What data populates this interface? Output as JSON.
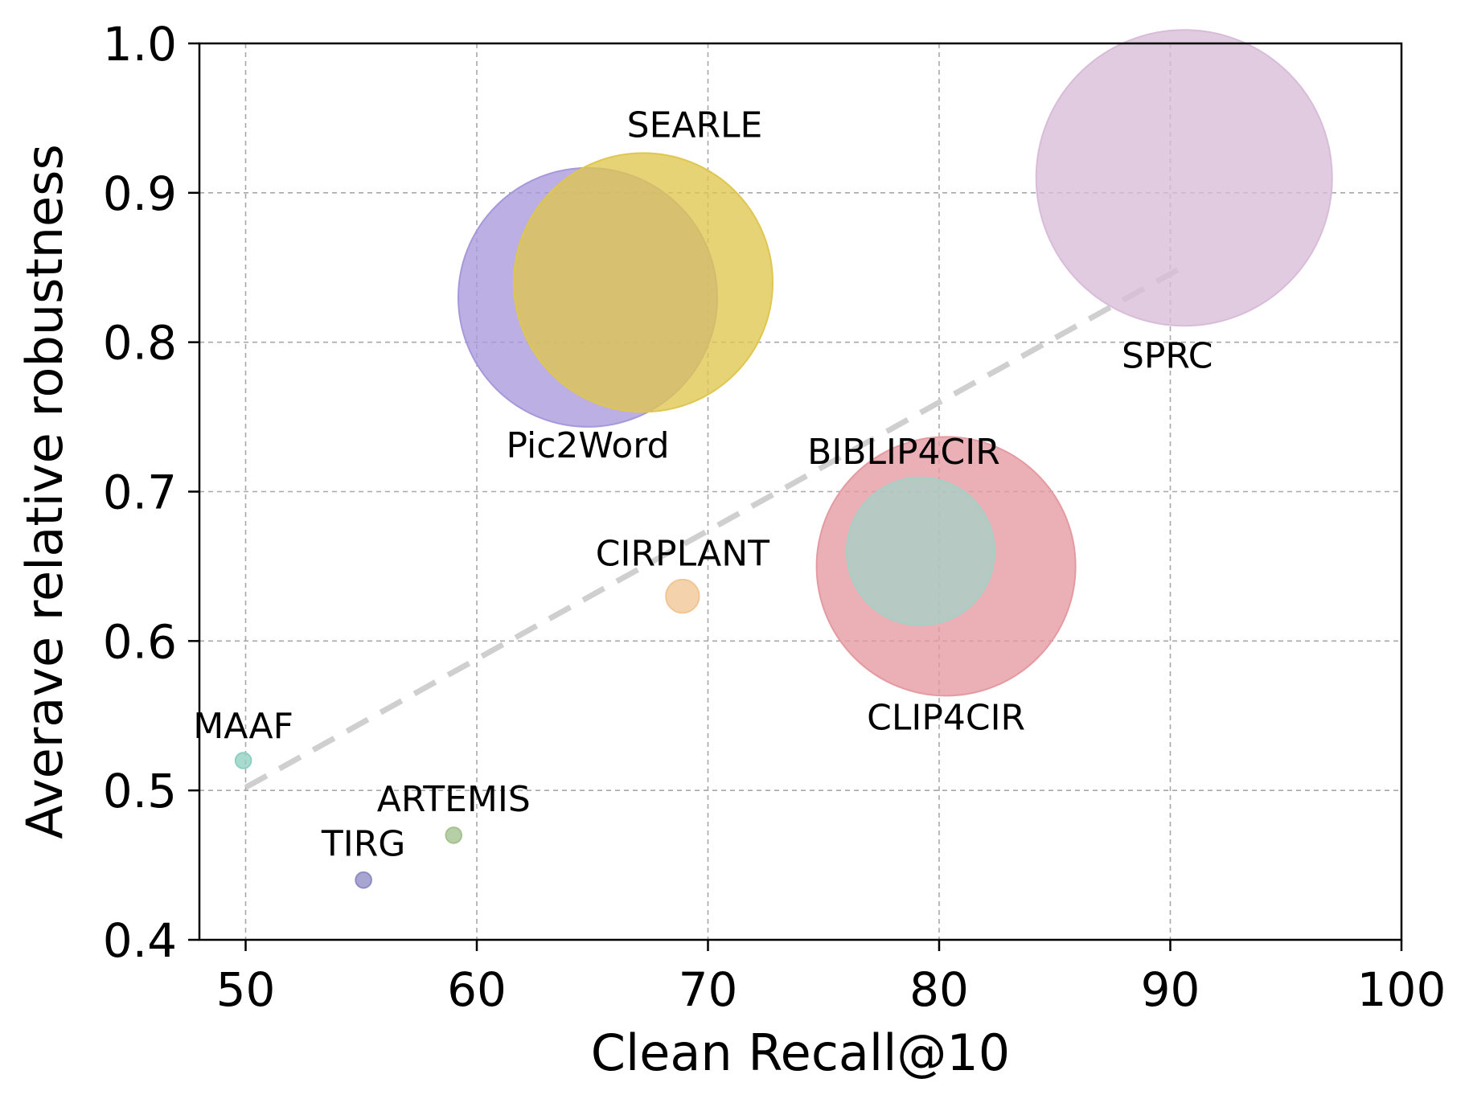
{
  "chart_data": {
    "type": "scatter",
    "title": "",
    "xlabel": "Clean Recall@10",
    "ylabel": "Averave relative robustness",
    "xlim": [
      48,
      100
    ],
    "ylim": [
      0.4,
      1.0
    ],
    "xticks": [
      "50",
      "60",
      "70",
      "80",
      "90",
      "100"
    ],
    "yticks": [
      "0.4",
      "0.5",
      "0.6",
      "0.7",
      "0.8",
      "0.9",
      "1.0"
    ],
    "grid": true,
    "trendline": {
      "x": [
        50,
        90.5
      ],
      "y": [
        0.502,
        0.85
      ],
      "color": "#cfcfcf",
      "style": "dashed"
    },
    "points": [
      {
        "label": "MAAF",
        "x": 49.9,
        "y": 0.52,
        "radius": 0.34,
        "color": "#8fcfc3"
      },
      {
        "label": "TIRG",
        "x": 55.1,
        "y": 0.44,
        "radius": 0.34,
        "color": "#8f8cc3"
      },
      {
        "label": "ARTEMIS",
        "x": 59.0,
        "y": 0.47,
        "radius": 0.34,
        "color": "#a3c28e"
      },
      {
        "label": "CIRPLANT",
        "x": 68.9,
        "y": 0.63,
        "radius": 0.72,
        "color": "#f1c594"
      },
      {
        "label": "Pic2Word",
        "x": 64.8,
        "y": 0.83,
        "radius": 5.6,
        "color": "#a898db"
      },
      {
        "label": "SEARLE",
        "x": 67.2,
        "y": 0.84,
        "radius": 5.6,
        "color": "#dfc650"
      },
      {
        "label": "CLIP4CIR",
        "x": 80.3,
        "y": 0.65,
        "radius": 5.6,
        "color": "#e49aa0"
      },
      {
        "label": "BIBLIP4CIR",
        "x": 79.2,
        "y": 0.66,
        "radius": 3.2,
        "color": "#a6cfc5"
      },
      {
        "label": "SPRC",
        "x": 90.6,
        "y": 0.91,
        "radius": 6.4,
        "color": "#d8bcd8"
      }
    ]
  }
}
